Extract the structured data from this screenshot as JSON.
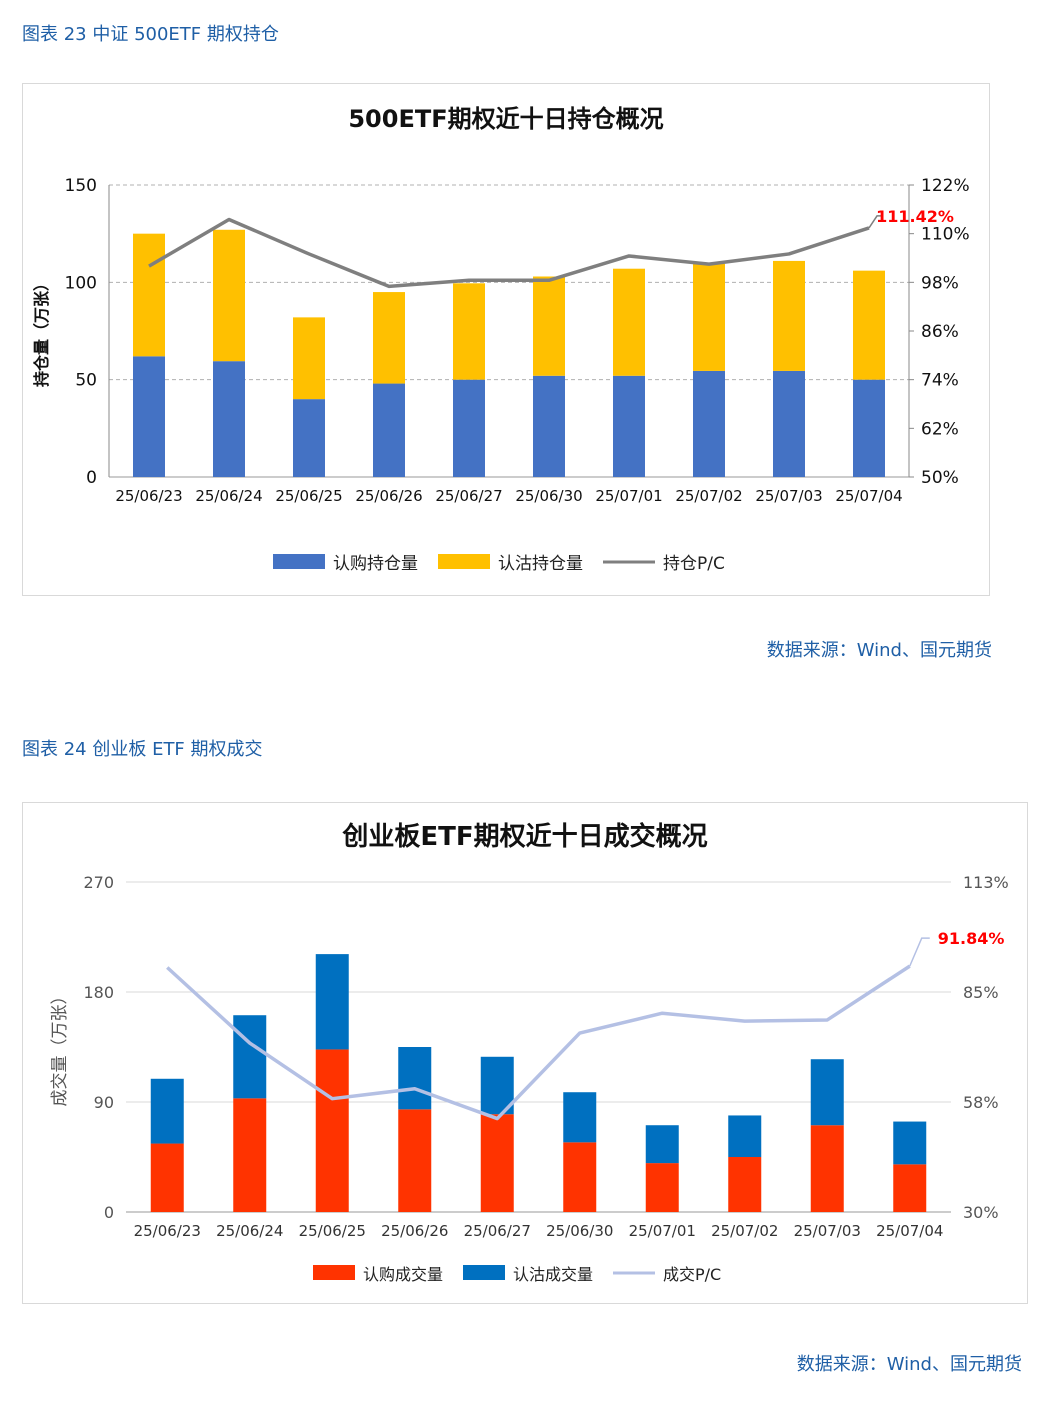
{
  "caption1": "图表 23  中证 500ETF 期权持仓",
  "source1": "数据来源：Wind、国元期货",
  "caption2": "图表 24  创业板 ETF 期权成交",
  "source2": "数据来源：Wind、国元期货",
  "chart_data": [
    {
      "type": "bar",
      "title": "500ETF期权近十日持仓概况",
      "xlabel": "",
      "ylabel": "持仓量（万张）",
      "categories": [
        "25/06/23",
        "25/06/24",
        "25/06/25",
        "25/06/26",
        "25/06/27",
        "25/06/30",
        "25/07/01",
        "25/07/02",
        "25/07/03",
        "25/07/04"
      ],
      "series": [
        {
          "name": "认购持仓量",
          "kind": "stacked-bar",
          "color": "#4472c4",
          "values": [
            62,
            59.5,
            40,
            48,
            50,
            52,
            52,
            54.5,
            54.5,
            50
          ]
        },
        {
          "name": "认沽持仓量",
          "kind": "stacked-bar",
          "color": "#ffc000",
          "values": [
            63,
            67.5,
            42,
            47,
            49.5,
            51,
            55,
            55,
            56.5,
            56
          ]
        },
        {
          "name": "持仓P/C",
          "kind": "line",
          "axis": "right",
          "color": "#7f7f7f",
          "values": [
            102,
            113.5,
            105,
            97,
            98.5,
            98.5,
            104.5,
            102.5,
            105,
            111.42
          ]
        }
      ],
      "ylim": [
        0,
        150
      ],
      "yticks": [
        "0",
        "50",
        "100",
        "150"
      ],
      "y2lim": [
        50,
        122
      ],
      "y2ticks": [
        "50%",
        "62%",
        "74%",
        "86%",
        "98%",
        "110%",
        "122%"
      ],
      "annotation": {
        "text": "111.42%",
        "color": "#ff0000"
      },
      "grid": true,
      "legend": "bottom"
    },
    {
      "type": "bar",
      "title": "创业板ETF期权近十日成交概况",
      "xlabel": "",
      "ylabel": "成交量（万张）",
      "categories": [
        "25/06/23",
        "25/06/24",
        "25/06/25",
        "25/06/26",
        "25/06/27",
        "25/06/30",
        "25/07/01",
        "25/07/02",
        "25/07/03",
        "25/07/04"
      ],
      "series": [
        {
          "name": "认购成交量",
          "kind": "stacked-bar",
          "color": "#ff3300",
          "values": [
            56,
            93,
            133,
            84,
            80,
            57,
            40,
            45,
            71,
            39
          ]
        },
        {
          "name": "认沽成交量",
          "kind": "stacked-bar",
          "color": "#0070c0",
          "values": [
            53,
            68,
            78,
            51,
            47,
            41,
            31,
            34,
            54,
            35
          ]
        },
        {
          "name": "成交P/C",
          "kind": "line",
          "axis": "right",
          "color": "#b4c0e4",
          "values": [
            91.5,
            72.5,
            58.5,
            61,
            53.5,
            75,
            80,
            78,
            78.3,
            91.84
          ]
        }
      ],
      "ylim": [
        0,
        270
      ],
      "yticks": [
        "0",
        "90",
        "180",
        "270"
      ],
      "y2lim": [
        30,
        113
      ],
      "y2ticks": [
        "30%",
        "58%",
        "85%",
        "113%"
      ],
      "annotation": {
        "text": "91.84%",
        "color": "#ff0000"
      },
      "grid": true,
      "legend": "bottom"
    }
  ]
}
